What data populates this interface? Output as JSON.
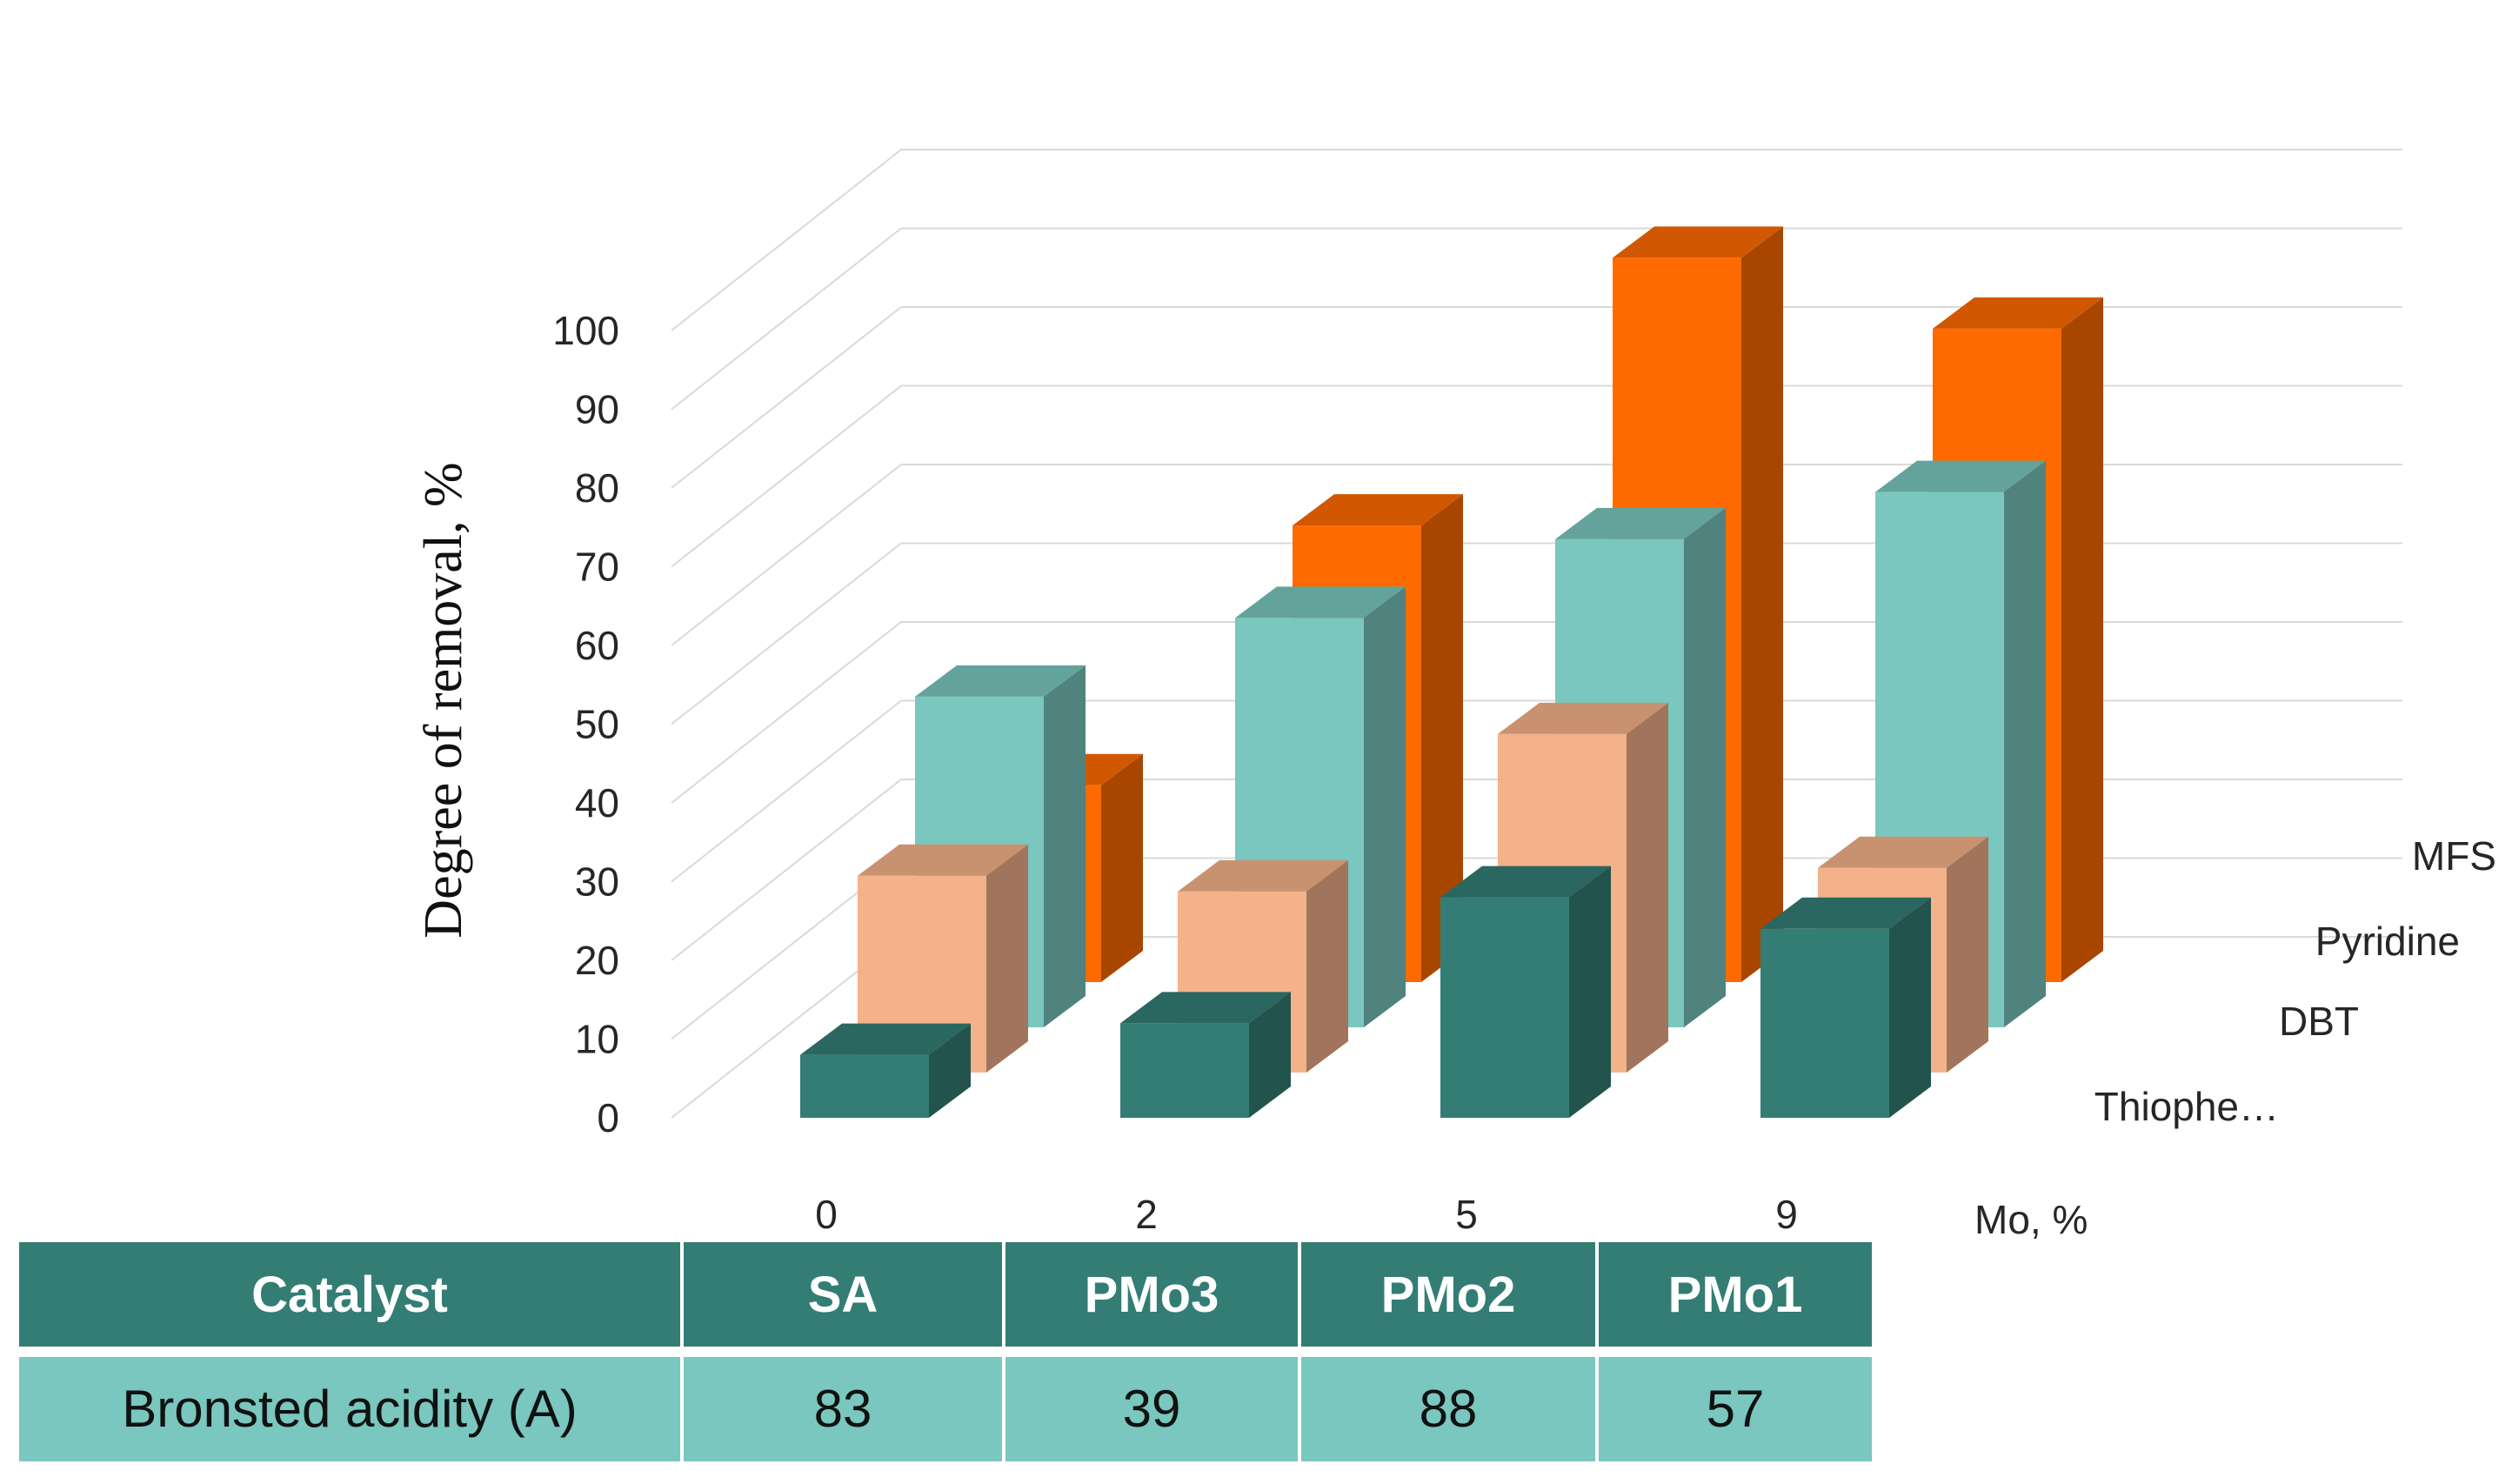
{
  "chart_data": {
    "type": "bar",
    "style": "3d-clustered-depth",
    "ylabel": "Degree of removal, %",
    "xlabel": "Mo, %",
    "ylim": [
      0,
      100
    ],
    "yticks": [
      "0",
      "10",
      "20",
      "30",
      "40",
      "50",
      "60",
      "70",
      "80",
      "90",
      "100"
    ],
    "categories": [
      "0",
      "2",
      "5",
      "9"
    ],
    "series": [
      {
        "name": "Thiophe…",
        "full_name": "Thiophene",
        "color": "#337D75",
        "values": [
          8,
          12,
          28,
          24
        ]
      },
      {
        "name": "DBT",
        "color": "#F4B28A",
        "values": [
          25,
          23,
          43,
          26
        ]
      },
      {
        "name": "Pyridine",
        "color": "#79C7BE",
        "values": [
          42,
          52,
          62,
          68
        ]
      },
      {
        "name": "MFS",
        "color": "#FF6A00",
        "values": [
          25,
          58,
          92,
          83
        ]
      }
    ]
  },
  "table": {
    "header_color": "#337D75",
    "row_color": "#79C7BE",
    "header": [
      "Catalyst",
      "SA",
      "PMo3",
      "PMo2",
      "PMo1"
    ],
    "row": [
      "Bronsted acidity (A)",
      "83",
      "39",
      "88",
      "57"
    ]
  }
}
